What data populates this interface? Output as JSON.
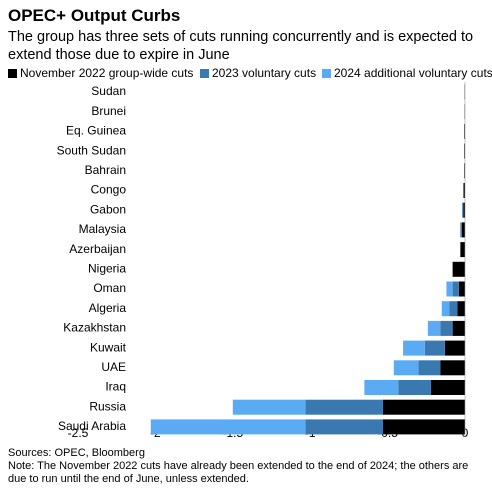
{
  "chart_data": {
    "type": "stacked-barh",
    "title": "OPEC+ Output Curbs",
    "subtitle": "The group has three sets of cuts running concurrently and is expected to extend those due to expire in June",
    "categories": [
      "Sudan",
      "Brunei",
      "Eq. Guinea",
      "South Sudan",
      "Bahrain",
      "Congo",
      "Gabon",
      "Malaysia",
      "Azerbaijan",
      "Nigeria",
      "Oman",
      "Algeria",
      "Kazakhstan",
      "Kuwait",
      "UAE",
      "Iraq",
      "Russia",
      "Saudi Arabia"
    ],
    "series": [
      {
        "name": "November 2022 group-wide cuts",
        "color": "#000000",
        "values": [
          -0.003,
          -0.003,
          -0.005,
          -0.005,
          -0.005,
          -0.01,
          -0.01,
          -0.02,
          -0.03,
          -0.08,
          -0.04,
          -0.05,
          -0.08,
          -0.13,
          -0.16,
          -0.22,
          -0.53,
          -0.53
        ]
      },
      {
        "name": "2023 voluntary cuts",
        "color": "#3a78b0",
        "values": [
          0,
          0,
          0,
          0,
          0,
          0,
          -0.008,
          -0.01,
          0,
          0,
          -0.04,
          -0.05,
          -0.08,
          -0.13,
          -0.14,
          -0.21,
          -0.5,
          -0.5
        ]
      },
      {
        "name": "2024 additional voluntary cuts",
        "color": "#5aabf3",
        "values": [
          0,
          0,
          0,
          0,
          0,
          0,
          0,
          0,
          0,
          0,
          -0.04,
          -0.05,
          -0.08,
          -0.14,
          -0.16,
          -0.22,
          -0.47,
          -1.0
        ]
      }
    ],
    "xlim": [
      -2.5,
      0
    ],
    "xticks": [
      -2.5,
      -2.0,
      -1.5,
      -1.0,
      -0.5,
      0
    ],
    "footer": "Sources: OPEC, Bloomberg",
    "note": "Note: The November 2022 cuts have already been extended to the end of 2024; the others are due to run until the end of June, unless extended."
  }
}
